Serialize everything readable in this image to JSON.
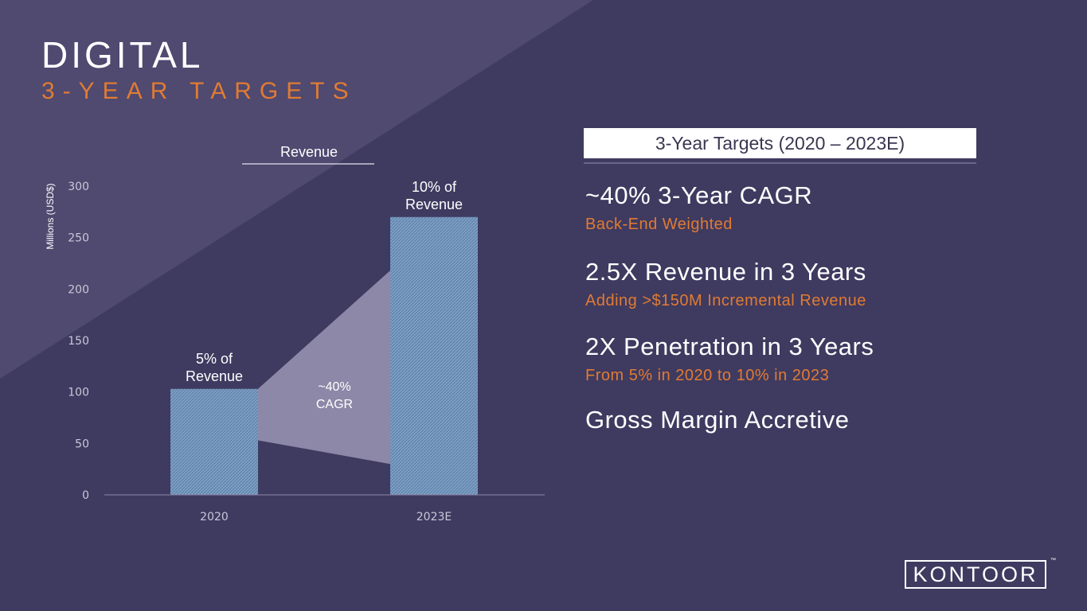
{
  "slide": {
    "title": "DIGITAL",
    "subtitle": "3-YEAR TARGETS"
  },
  "chart_data": {
    "type": "bar",
    "title": "Revenue",
    "ylabel": "Millions (USD$)",
    "xlabel": "",
    "categories": [
      "2020",
      "2023E"
    ],
    "values": [
      103,
      270
    ],
    "ylim": [
      0,
      300
    ],
    "yticks": [
      0,
      50,
      100,
      150,
      200,
      250,
      300
    ],
    "bar_labels": [
      [
        "5% of",
        "Revenue"
      ],
      [
        "10% of",
        "Revenue"
      ]
    ],
    "growth_annotation": [
      "~40%",
      "CAGR"
    ],
    "bar_color": "#7d9fc4",
    "wedge_color": "#8d88a8",
    "grid": false
  },
  "panel": {
    "header": "3-Year Targets (2020 – 2023E)",
    "items": [
      {
        "headline": "~40% 3-Year CAGR",
        "detail": "Back-End Weighted"
      },
      {
        "headline": "2.5X Revenue in 3 Years",
        "detail": "Adding >$150M Incremental Revenue"
      },
      {
        "headline": "2X Penetration in 3 Years",
        "detail": "From 5% in 2020 to 10% in 2023"
      },
      {
        "headline": "Gross Margin Accretive",
        "detail": ""
      }
    ]
  },
  "brand": {
    "logo_text": "KONTOOR",
    "trademark": "™",
    "accent_color": "#e07b33"
  }
}
